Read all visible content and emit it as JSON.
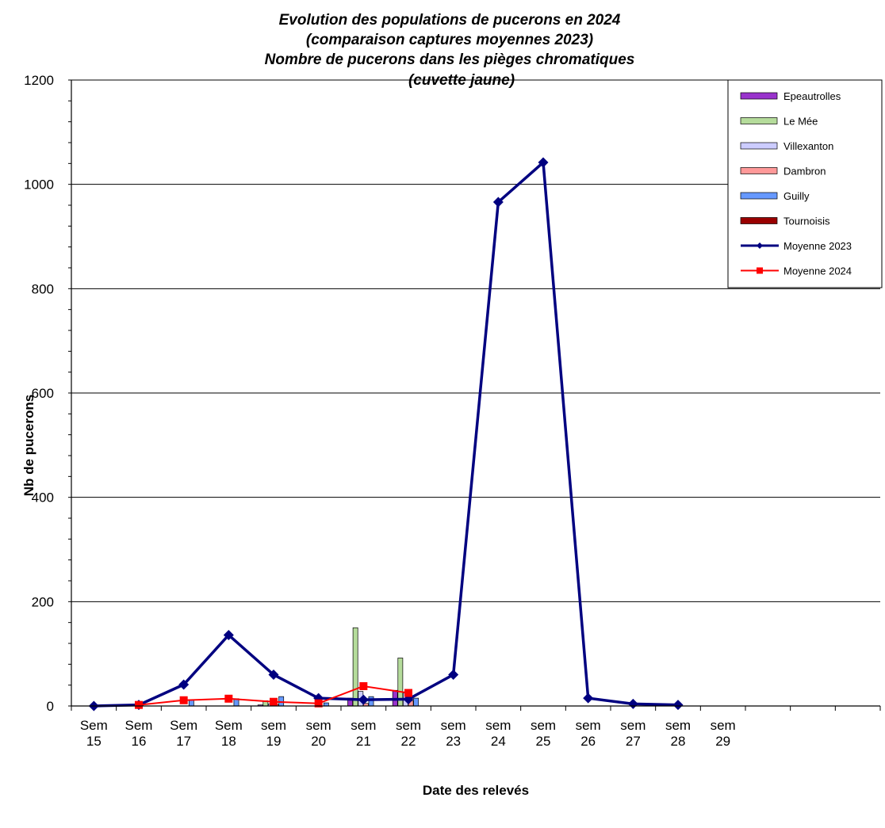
{
  "chart_data": {
    "type": "bar",
    "title_lines": [
      "Evolution des populations de pucerons en 2024",
      "(comparaison captures moyennes 2023)",
      "Nombre de pucerons dans les pièges chromatiques",
      "(cuvette jaune)"
    ],
    "xlabel": "Date des relevés",
    "ylabel": "Nb de pucerons",
    "ylim": [
      0,
      1200
    ],
    "yticks": [
      0,
      200,
      400,
      600,
      800,
      1000,
      1200
    ],
    "grid": true,
    "legend_position": "top-right",
    "categories": [
      [
        "Sem",
        "15"
      ],
      [
        "Sem",
        "16"
      ],
      [
        "Sem",
        "17"
      ],
      [
        "Sem",
        "18"
      ],
      [
        "sem",
        "19"
      ],
      [
        "sem",
        "20"
      ],
      [
        "sem",
        "21"
      ],
      [
        "sem",
        "22"
      ],
      [
        "sem",
        "23"
      ],
      [
        "sem",
        "24"
      ],
      [
        "sem",
        "25"
      ],
      [
        "sem",
        "26"
      ],
      [
        "sem",
        "27"
      ],
      [
        "sem",
        "28"
      ],
      [
        "sem",
        "29"
      ],
      [
        "",
        ""
      ],
      [
        "",
        ""
      ],
      [
        "",
        ""
      ]
    ],
    "series": [
      {
        "name": "Epeautrolles",
        "kind": "bar",
        "color": "#9933cc",
        "values": [
          null,
          null,
          0,
          0,
          2,
          0,
          15,
          30,
          null,
          null,
          null,
          null,
          null,
          null,
          null,
          null,
          null,
          null
        ]
      },
      {
        "name": "Le Mée",
        "kind": "bar",
        "color": "#b5dc9b",
        "values": [
          null,
          null,
          0,
          0,
          10,
          0,
          150,
          92,
          null,
          null,
          null,
          null,
          null,
          null,
          null,
          null,
          null,
          null
        ]
      },
      {
        "name": "Villexanton",
        "kind": "bar",
        "color": "#ccccff",
        "values": [
          null,
          null,
          0,
          0,
          4,
          0,
          28,
          25,
          null,
          null,
          null,
          null,
          null,
          null,
          null,
          null,
          null,
          null
        ]
      },
      {
        "name": "Dambron",
        "kind": "bar",
        "color": "#ff9999",
        "values": [
          null,
          null,
          0,
          0,
          3,
          0,
          5,
          10,
          null,
          null,
          null,
          null,
          null,
          null,
          null,
          null,
          null,
          null
        ]
      },
      {
        "name": "Guilly",
        "kind": "bar",
        "color": "#6699ff",
        "values": [
          null,
          null,
          12,
          14,
          18,
          6,
          18,
          15,
          null,
          null,
          null,
          null,
          null,
          null,
          null,
          null,
          null,
          null
        ]
      },
      {
        "name": "Tournoisis",
        "kind": "bar",
        "color": "#990000",
        "values": [
          null,
          null,
          0,
          0,
          0,
          0,
          0,
          0,
          null,
          null,
          null,
          null,
          null,
          null,
          null,
          null,
          null,
          null
        ]
      },
      {
        "name": "Moyenne 2023",
        "kind": "line",
        "color": "#000080",
        "marker": "diamond",
        "values": [
          0,
          2,
          41,
          136,
          60,
          15,
          12,
          13,
          60,
          966,
          1042,
          15,
          4,
          2,
          null,
          null,
          null,
          null
        ]
      },
      {
        "name": "Moyenne 2024",
        "kind": "line",
        "color": "#ff0000",
        "marker": "square",
        "values": [
          null,
          2,
          11,
          14,
          8,
          5,
          38,
          25,
          null,
          null,
          null,
          null,
          null,
          null,
          null,
          null,
          null,
          null
        ]
      }
    ]
  }
}
